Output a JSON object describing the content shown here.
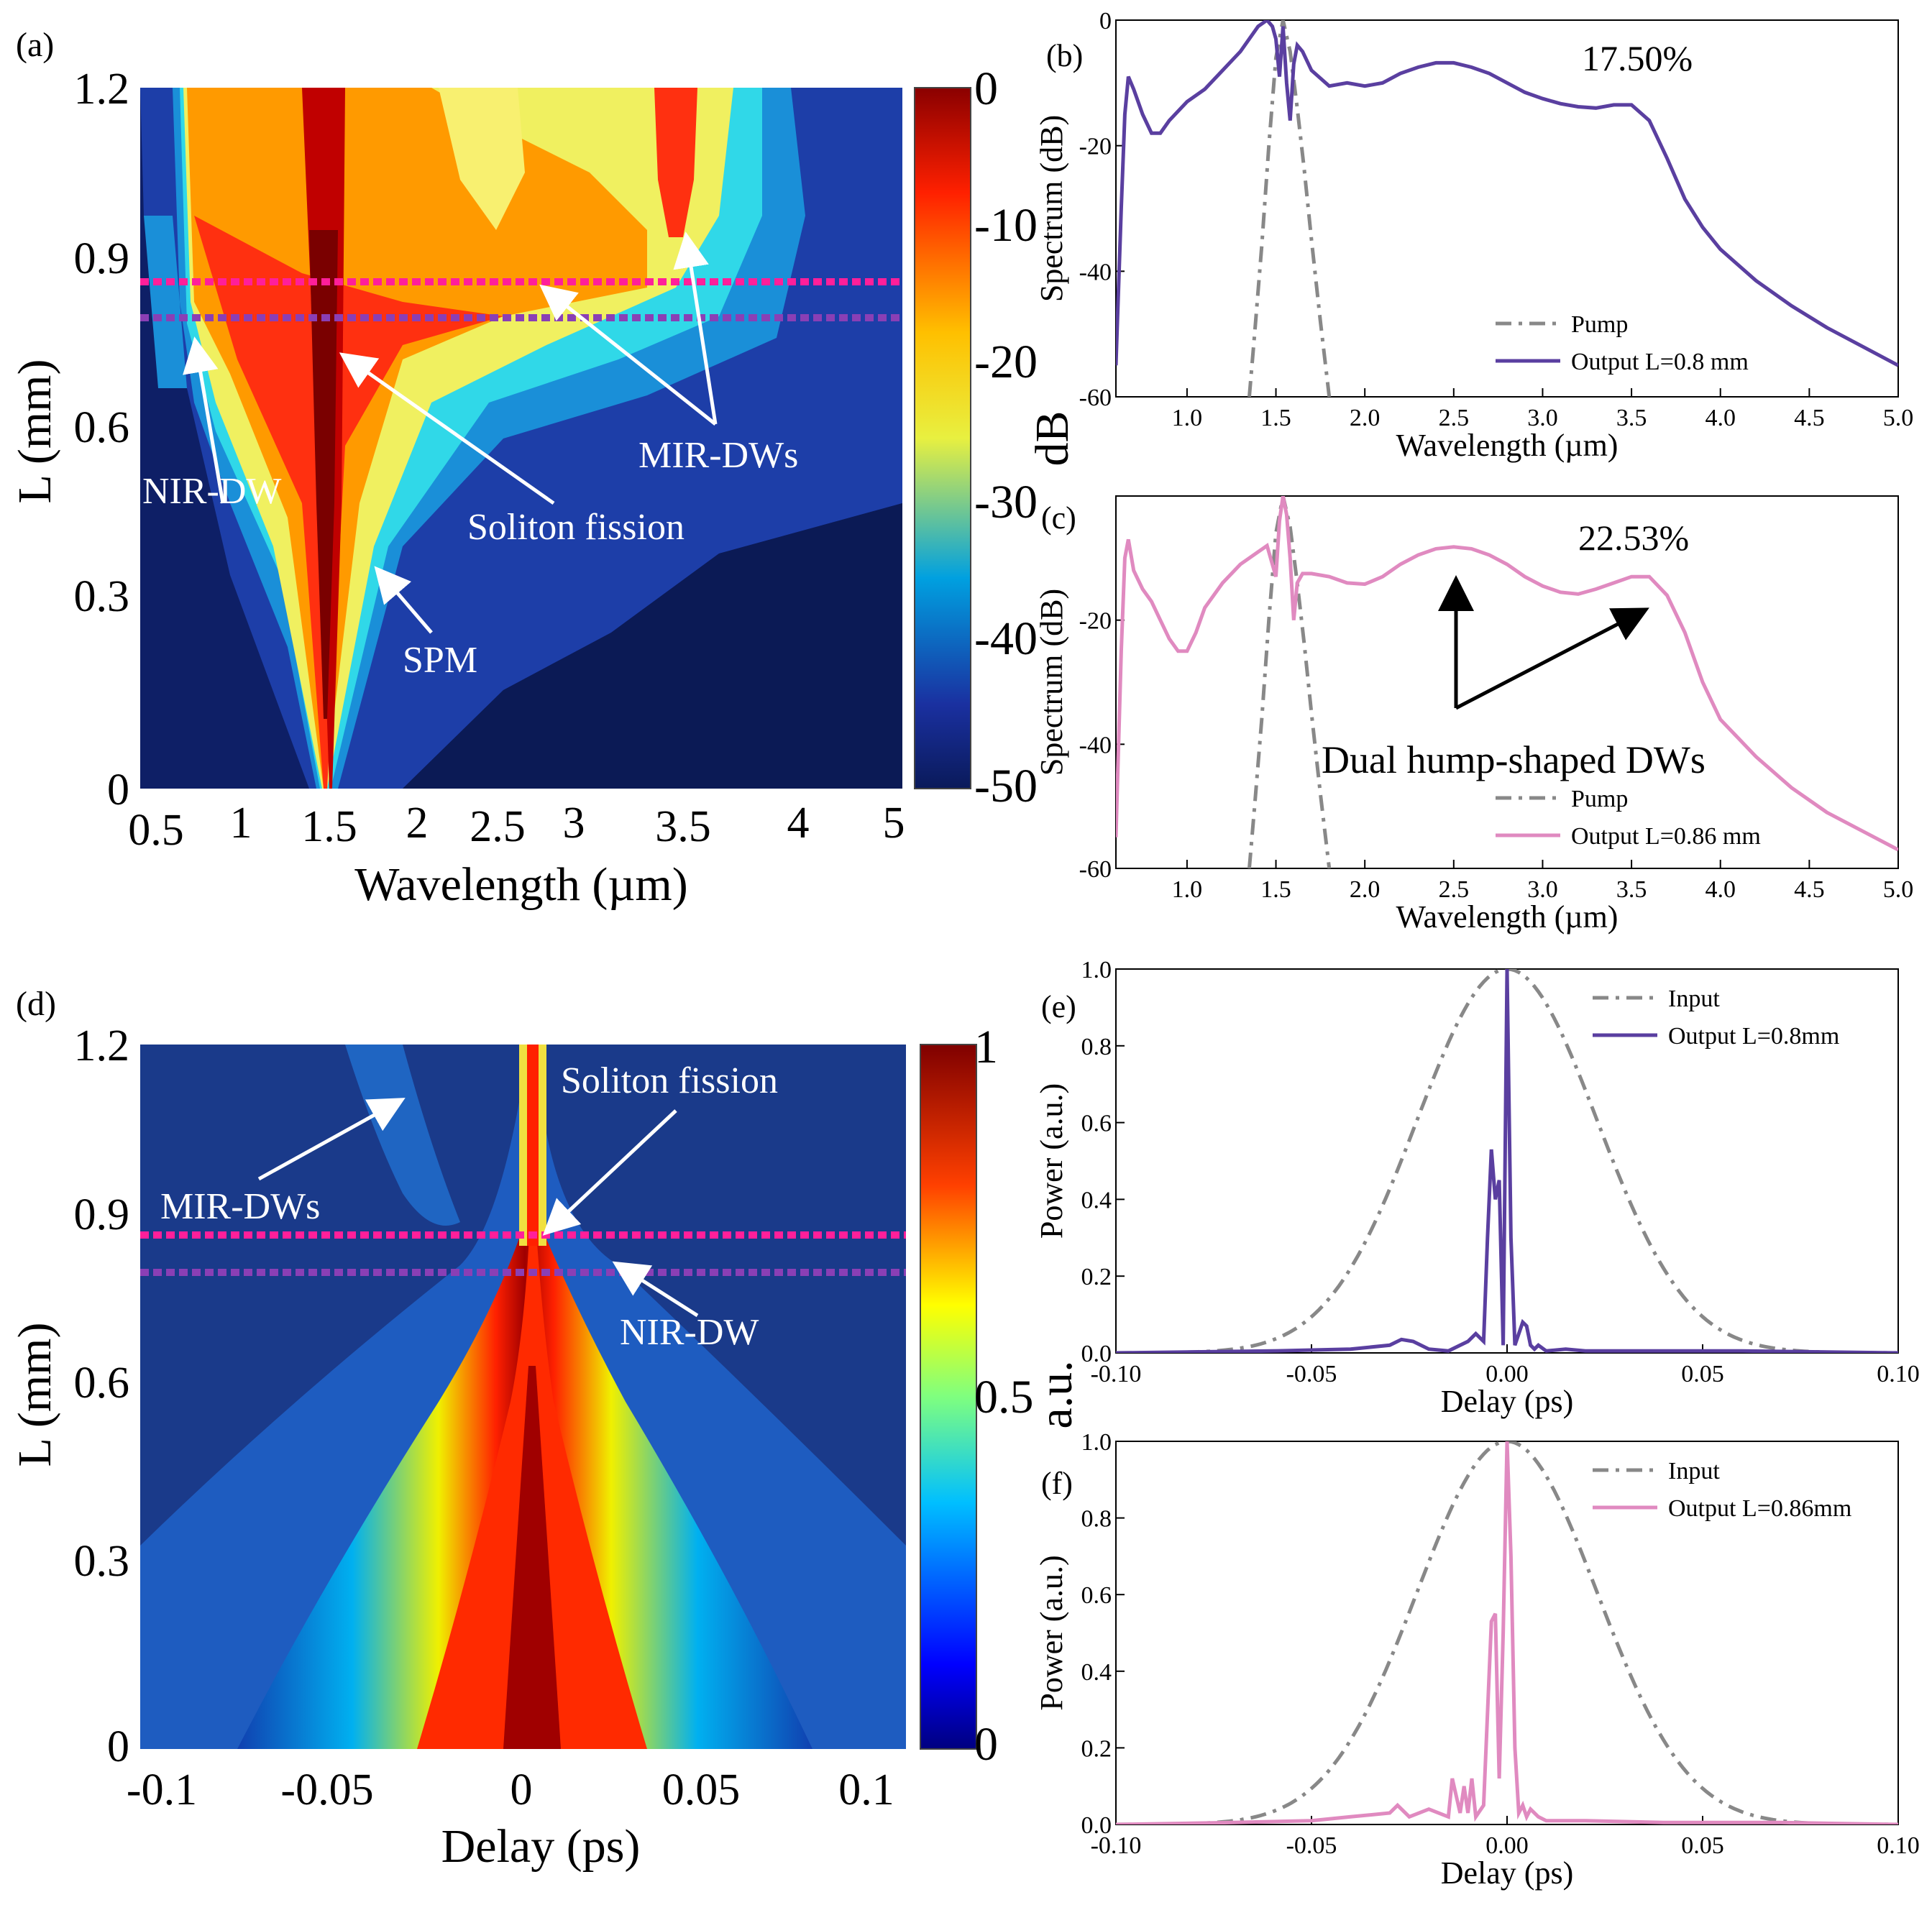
{
  "panel_labels": {
    "a": "(a)",
    "b": "(b)",
    "c": "(c)",
    "d": "(d)",
    "e": "(e)",
    "f": "(f)"
  },
  "colors": {
    "pump_input": "#888888",
    "output_08": "#5a3fa0",
    "output_086": "#e08ac0",
    "line_086_marker": "#ff1f9a",
    "line_08_marker": "#8a3fb5",
    "annotation": "#ffffff",
    "colormap": [
      "#00007f",
      "#0000ff",
      "#007fff",
      "#00ffff",
      "#7fff7f",
      "#ffff00",
      "#ff7f00",
      "#ff0000",
      "#7f0000"
    ]
  },
  "chart_data": [
    {
      "id": "a",
      "type": "heatmap",
      "xlabel": "Wavelength (µm)",
      "ylabel": "L (mm)",
      "x_ticks": [
        "0.5",
        "1",
        "1.5",
        "2",
        "2.5",
        "3",
        "3.5",
        "4",
        "5"
      ],
      "y_ticks": [
        "0",
        "0.3",
        "0.6",
        "0.9",
        "1.2"
      ],
      "xlim": [
        0.6,
        5.0
      ],
      "ylim": [
        0,
        1.2
      ],
      "colorbar": {
        "label": "dB",
        "ticks": [
          "0",
          "-10",
          "-20",
          "-30",
          "-40",
          "-50"
        ],
        "range": [
          -50,
          0
        ]
      },
      "reference_lines": [
        {
          "L": 0.86,
          "color": "magenta"
        },
        {
          "L": 0.8,
          "color": "purple"
        }
      ],
      "annotations": [
        "NIR-DW",
        "Soliton fission",
        "MIR-DWs",
        "SPM"
      ]
    },
    {
      "id": "b",
      "type": "line",
      "xlabel": "Wavelength (µm)",
      "ylabel": "Spectrum (dB)",
      "xlim": [
        0.6,
        5.0
      ],
      "ylim": [
        -60,
        0
      ],
      "x_ticks": [
        "1.0",
        "1.5",
        "2.0",
        "2.5",
        "3.0",
        "3.5",
        "4.0",
        "4.5",
        "5.0"
      ],
      "y_ticks": [
        "0",
        "-20",
        "-40",
        "-60"
      ],
      "annotation": "17.50%",
      "series": [
        {
          "name": "Pump",
          "style": "dash-dot",
          "x": [
            1.35,
            1.38,
            1.42,
            1.46,
            1.5,
            1.54,
            1.58,
            1.62,
            1.66,
            1.7,
            1.75,
            1.8
          ],
          "y": [
            -60,
            -50,
            -36,
            -20,
            -6,
            0,
            -5,
            -14,
            -24,
            -35,
            -48,
            -60
          ]
        },
        {
          "name": "Output L=0.8 mm",
          "style": "solid",
          "x": [
            0.6,
            0.63,
            0.65,
            0.67,
            0.7,
            0.75,
            0.8,
            0.85,
            0.9,
            1.0,
            1.1,
            1.2,
            1.3,
            1.4,
            1.45,
            1.48,
            1.5,
            1.52,
            1.54,
            1.56,
            1.58,
            1.6,
            1.62,
            1.65,
            1.7,
            1.8,
            1.9,
            2.0,
            2.1,
            2.2,
            2.3,
            2.4,
            2.5,
            2.6,
            2.7,
            2.8,
            2.9,
            3.0,
            3.1,
            3.2,
            3.3,
            3.4,
            3.5,
            3.6,
            3.7,
            3.8,
            3.9,
            4.0,
            4.2,
            4.4,
            4.6,
            4.8,
            5.0
          ],
          "y": [
            -55,
            -30,
            -15,
            -9,
            -11,
            -15,
            -18,
            -18,
            -16,
            -13,
            -11,
            -8,
            -5,
            -1,
            0,
            -1,
            -3,
            -9,
            -1,
            -10,
            -16,
            -7,
            -4,
            -5,
            -8,
            -10.5,
            -10,
            -10.5,
            -10,
            -8.5,
            -7.5,
            -6.8,
            -6.8,
            -7.5,
            -8.5,
            -10,
            -11.5,
            -12.5,
            -13.3,
            -13.8,
            -14,
            -13.5,
            -13.5,
            -16,
            -22,
            -28.5,
            -33,
            -36.5,
            -41.5,
            -45.5,
            -49,
            -52,
            -55
          ]
        }
      ]
    },
    {
      "id": "c",
      "type": "line",
      "xlabel": "Wavelength (µm)",
      "ylabel": "Spectrum (dB)",
      "xlim": [
        0.6,
        5.0
      ],
      "ylim": [
        -60,
        0
      ],
      "x_ticks": [
        "1.0",
        "1.5",
        "2.0",
        "2.5",
        "3.0",
        "3.5",
        "4.0",
        "4.5",
        "5.0"
      ],
      "y_ticks": [
        "-20",
        "-40",
        "-60"
      ],
      "annotation": "22.53%",
      "annotation2": "Dual hump-shaped DWs",
      "series": [
        {
          "name": "Pump",
          "style": "dash-dot",
          "x": [
            1.35,
            1.38,
            1.42,
            1.46,
            1.5,
            1.54,
            1.58,
            1.62,
            1.66,
            1.7,
            1.75,
            1.8
          ],
          "y": [
            -60,
            -50,
            -36,
            -20,
            -6,
            0,
            -5,
            -14,
            -24,
            -35,
            -48,
            -60
          ]
        },
        {
          "name": "Output L=0.86 mm",
          "style": "solid",
          "x": [
            0.6,
            0.63,
            0.65,
            0.67,
            0.7,
            0.75,
            0.8,
            0.85,
            0.9,
            0.95,
            1.0,
            1.05,
            1.1,
            1.2,
            1.3,
            1.4,
            1.45,
            1.5,
            1.52,
            1.54,
            1.56,
            1.58,
            1.6,
            1.62,
            1.65,
            1.7,
            1.8,
            1.9,
            2.0,
            2.1,
            2.2,
            2.3,
            2.4,
            2.5,
            2.6,
            2.7,
            2.8,
            2.9,
            3.0,
            3.1,
            3.2,
            3.3,
            3.4,
            3.5,
            3.6,
            3.7,
            3.8,
            3.9,
            4.0,
            4.2,
            4.4,
            4.6,
            4.8,
            5.0
          ],
          "y": [
            -55,
            -25,
            -10,
            -7,
            -12,
            -15,
            -17,
            -20,
            -23,
            -25,
            -25,
            -22,
            -18,
            -14,
            -11,
            -9,
            -8,
            -13,
            -4,
            0,
            -3,
            -10,
            -20,
            -14,
            -12.5,
            -12.5,
            -13,
            -14,
            -14.2,
            -13,
            -11,
            -9.5,
            -8.5,
            -8.2,
            -8.5,
            -9.5,
            -11,
            -13,
            -14.5,
            -15.5,
            -15.8,
            -15,
            -14,
            -13,
            -13,
            -16,
            -22,
            -30,
            -36,
            -42,
            -47,
            -51,
            -54,
            -57
          ]
        }
      ]
    },
    {
      "id": "d",
      "type": "heatmap",
      "xlabel": "Delay (ps)",
      "ylabel": "L (mm)",
      "x_ticks": [
        "-0.1",
        "-0.05",
        "0",
        "0.05",
        "0.1"
      ],
      "y_ticks": [
        "0",
        "0.3",
        "0.6",
        "0.9",
        "1.2"
      ],
      "xlim": [
        -0.11,
        0.11
      ],
      "ylim": [
        0,
        1.2
      ],
      "colorbar": {
        "label": "a.u.",
        "ticks": [
          "1",
          "0.5",
          "0"
        ],
        "range": [
          0,
          1
        ]
      },
      "reference_lines": [
        {
          "L": 0.86,
          "color": "magenta"
        },
        {
          "L": 0.8,
          "color": "purple"
        }
      ],
      "annotations": [
        "Soliton fission",
        "MIR-DWs",
        "NIR-DW"
      ]
    },
    {
      "id": "e",
      "type": "line",
      "xlabel": "Delay (ps)",
      "ylabel": "Power (a.u.)",
      "xlim": [
        -0.1,
        0.1
      ],
      "ylim": [
        0,
        1.0
      ],
      "x_ticks": [
        "-0.10",
        "-0.05",
        "0.00",
        "0.05",
        "0.10"
      ],
      "y_ticks": [
        "0.0",
        "0.2",
        "0.4",
        "0.6",
        "0.8",
        "1.0"
      ],
      "series": [
        {
          "name": "Input",
          "style": "dash-dot",
          "gaussian": {
            "center": 0,
            "sigma": 0.023
          }
        },
        {
          "name": "Output L=0.8mm",
          "style": "solid",
          "x": [
            -0.1,
            -0.06,
            -0.04,
            -0.03,
            -0.027,
            -0.024,
            -0.02,
            -0.015,
            -0.01,
            -0.008,
            -0.006,
            -0.005,
            -0.004,
            -0.003,
            -0.002,
            -0.001,
            0.0,
            0.001,
            0.002,
            0.003,
            0.004,
            0.005,
            0.006,
            0.007,
            0.008,
            0.01,
            0.015,
            0.02,
            0.04,
            0.06,
            0.1
          ],
          "y": [
            0,
            0.005,
            0.01,
            0.02,
            0.035,
            0.03,
            0.01,
            0.005,
            0.03,
            0.05,
            0.03,
            0.3,
            0.53,
            0.4,
            0.45,
            0.02,
            1.0,
            0.3,
            0.02,
            0.05,
            0.08,
            0.07,
            0.02,
            0.01,
            0.02,
            0.005,
            0.01,
            0.005,
            0.005,
            0.005,
            0.0
          ]
        }
      ]
    },
    {
      "id": "f",
      "type": "line",
      "xlabel": "Delay (ps)",
      "ylabel": "Power (a.u.)",
      "xlim": [
        -0.1,
        0.1
      ],
      "ylim": [
        0,
        1.0
      ],
      "x_ticks": [
        "-0.10",
        "-0.05",
        "0.00",
        "0.05",
        "0.10"
      ],
      "y_ticks": [
        "0.0",
        "0.2",
        "0.4",
        "0.6",
        "0.8",
        "1.0"
      ],
      "series": [
        {
          "name": "Input",
          "style": "dash-dot",
          "gaussian": {
            "center": 0,
            "sigma": 0.023
          }
        },
        {
          "name": "Output L=0.86mm",
          "style": "solid",
          "x": [
            -0.1,
            -0.07,
            -0.05,
            -0.04,
            -0.03,
            -0.028,
            -0.025,
            -0.02,
            -0.015,
            -0.014,
            -0.012,
            -0.011,
            -0.01,
            -0.009,
            -0.008,
            -0.006,
            -0.004,
            -0.003,
            -0.002,
            -0.001,
            0.0,
            0.001,
            0.002,
            0.003,
            0.004,
            0.005,
            0.006,
            0.008,
            0.01,
            0.02,
            0.04,
            0.07,
            0.1
          ],
          "y": [
            0,
            0.005,
            0.01,
            0.02,
            0.03,
            0.05,
            0.02,
            0.04,
            0.02,
            0.12,
            0.03,
            0.1,
            0.03,
            0.12,
            0.02,
            0.05,
            0.53,
            0.55,
            0.12,
            0.5,
            1.0,
            0.7,
            0.2,
            0.03,
            0.05,
            0.02,
            0.04,
            0.02,
            0.01,
            0.01,
            0.005,
            0.005,
            0.0
          ]
        }
      ]
    }
  ]
}
